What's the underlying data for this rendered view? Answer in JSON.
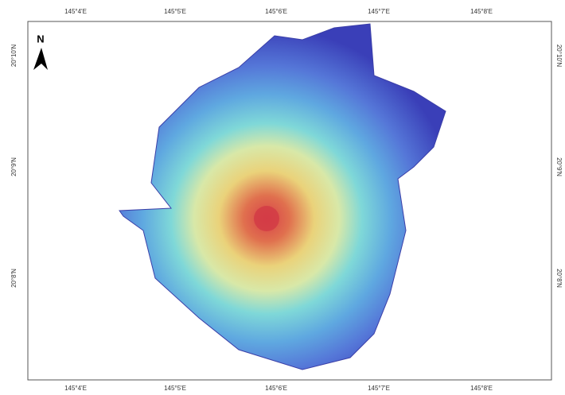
{
  "map": {
    "north_label": "N",
    "longitude_labels": [
      "145°4'E",
      "145°5'E",
      "145°6'E",
      "145°7'E",
      "145°8'E"
    ],
    "latitude_labels": [
      "20°10'N",
      "20°9'N",
      "20°8'N"
    ]
  }
}
